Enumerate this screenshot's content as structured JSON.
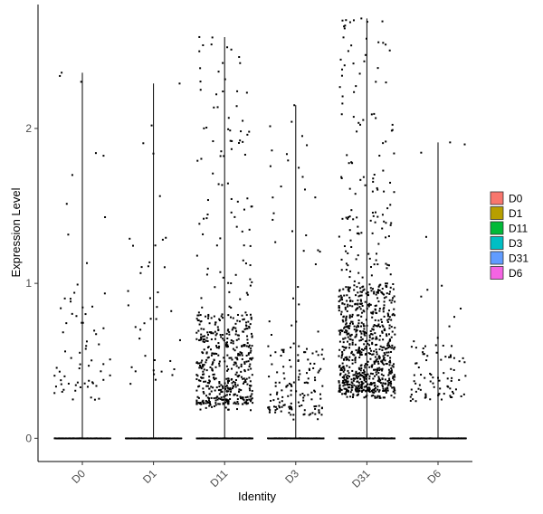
{
  "chart_data": {
    "type": "scatter",
    "subtype": "violin-jitter",
    "title": "",
    "xlabel": "Identity",
    "ylabel": "Expression Level",
    "categories": [
      "D0",
      "D1",
      "D11",
      "D3",
      "D31",
      "D6"
    ],
    "ylim": [
      -0.15,
      2.8
    ],
    "yticks": [
      0,
      1,
      2
    ],
    "grid": false,
    "legend_position": "right",
    "legend_entries": [
      "D0",
      "D1",
      "D11",
      "D3",
      "D31",
      "D6"
    ],
    "colors": [
      "#F8766D",
      "#B79F00",
      "#00BA38",
      "#00BFC4",
      "#619CFF",
      "#F564E3"
    ],
    "groups": [
      {
        "name": "D0",
        "max": 2.36,
        "zero_count": 900,
        "nonzero_count": 70,
        "nonzero_range": [
          0.24,
          2.36
        ],
        "dense_range": [
          0.3,
          1.0
        ]
      },
      {
        "name": "D1",
        "max": 2.29,
        "zero_count": 900,
        "nonzero_count": 40,
        "nonzero_range": [
          0.34,
          2.29
        ],
        "dense_range": [
          0.35,
          1.3
        ]
      },
      {
        "name": "D11",
        "max": 2.59,
        "zero_count": 900,
        "nonzero_count": 560,
        "nonzero_range": [
          0.18,
          2.59
        ],
        "dense_range": [
          0.22,
          0.8
        ]
      },
      {
        "name": "D3",
        "max": 2.15,
        "zero_count": 900,
        "nonzero_count": 170,
        "nonzero_range": [
          0.12,
          2.15
        ],
        "dense_range": [
          0.15,
          0.6
        ]
      },
      {
        "name": "D31",
        "max": 2.71,
        "zero_count": 900,
        "nonzero_count": 900,
        "nonzero_range": [
          0.26,
          2.71
        ],
        "dense_range": [
          0.3,
          1.0
        ]
      },
      {
        "name": "D6",
        "max": 1.91,
        "zero_count": 900,
        "nonzero_count": 90,
        "nonzero_range": [
          0.24,
          1.91
        ],
        "dense_range": [
          0.25,
          0.6
        ]
      }
    ]
  }
}
